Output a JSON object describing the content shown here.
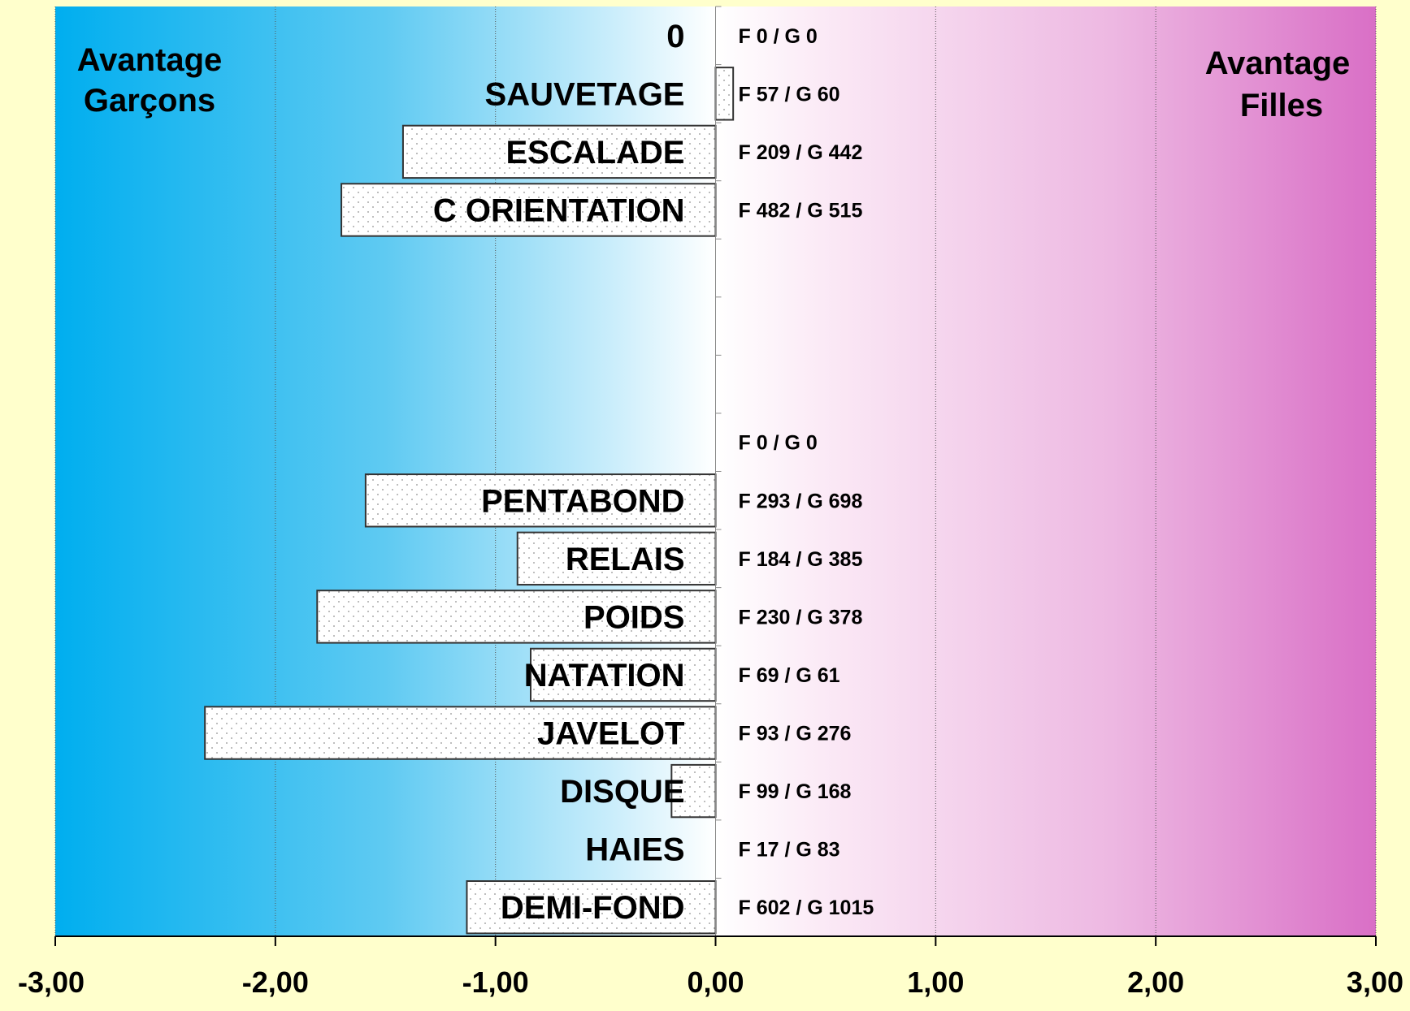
{
  "chart_data": {
    "type": "bar",
    "orientation": "horizontal",
    "xlim": [
      -3,
      3
    ],
    "x_ticks": [
      "-3,00",
      "-2,00",
      "-1,00",
      "0,00",
      "1,00",
      "2,00",
      "3,00"
    ],
    "grid": "vertical",
    "left_annotation": [
      "Avantage",
      "Garçons"
    ],
    "right_annotation": [
      "Avantage",
      "Filles"
    ],
    "colors": {
      "left": "#00aeef",
      "right": "#d96fc6",
      "background": "#ffffcc",
      "bar_fill": "#ffffff"
    },
    "rows": [
      {
        "label": "0",
        "value": 0,
        "counts": "F 0 / G 0"
      },
      {
        "label": "SAUVETAGE",
        "value": 0.08,
        "counts": "F 57 / G 60"
      },
      {
        "label": "ESCALADE",
        "value": -1.42,
        "counts": "F 209 / G 442"
      },
      {
        "label": "C ORIENTATION",
        "value": -1.7,
        "counts": "F 482 / G 515"
      },
      {
        "label": "",
        "value": null,
        "counts": ""
      },
      {
        "label": "",
        "value": null,
        "counts": ""
      },
      {
        "label": "",
        "value": null,
        "counts": ""
      },
      {
        "label": "",
        "value": null,
        "counts": "F 0 / G 0"
      },
      {
        "label": "PENTABOND",
        "value": -1.59,
        "counts": "F 293 / G 698"
      },
      {
        "label": "RELAIS",
        "value": -0.9,
        "counts": "F 184 / G 385"
      },
      {
        "label": "POIDS",
        "value": -1.81,
        "counts": "F 230 / G 378"
      },
      {
        "label": "NATATION",
        "value": -0.84,
        "counts": "F 69 / G 61"
      },
      {
        "label": "JAVELOT",
        "value": -2.32,
        "counts": "F 93 / G 276"
      },
      {
        "label": "DISQUE",
        "value": -0.2,
        "counts": "F 99 / G 168"
      },
      {
        "label": "HAIES",
        "value": 0,
        "counts": "F 17 / G 83"
      },
      {
        "label": "DEMI-FOND",
        "value": -1.13,
        "counts": "F 602 / G 1015"
      }
    ]
  }
}
